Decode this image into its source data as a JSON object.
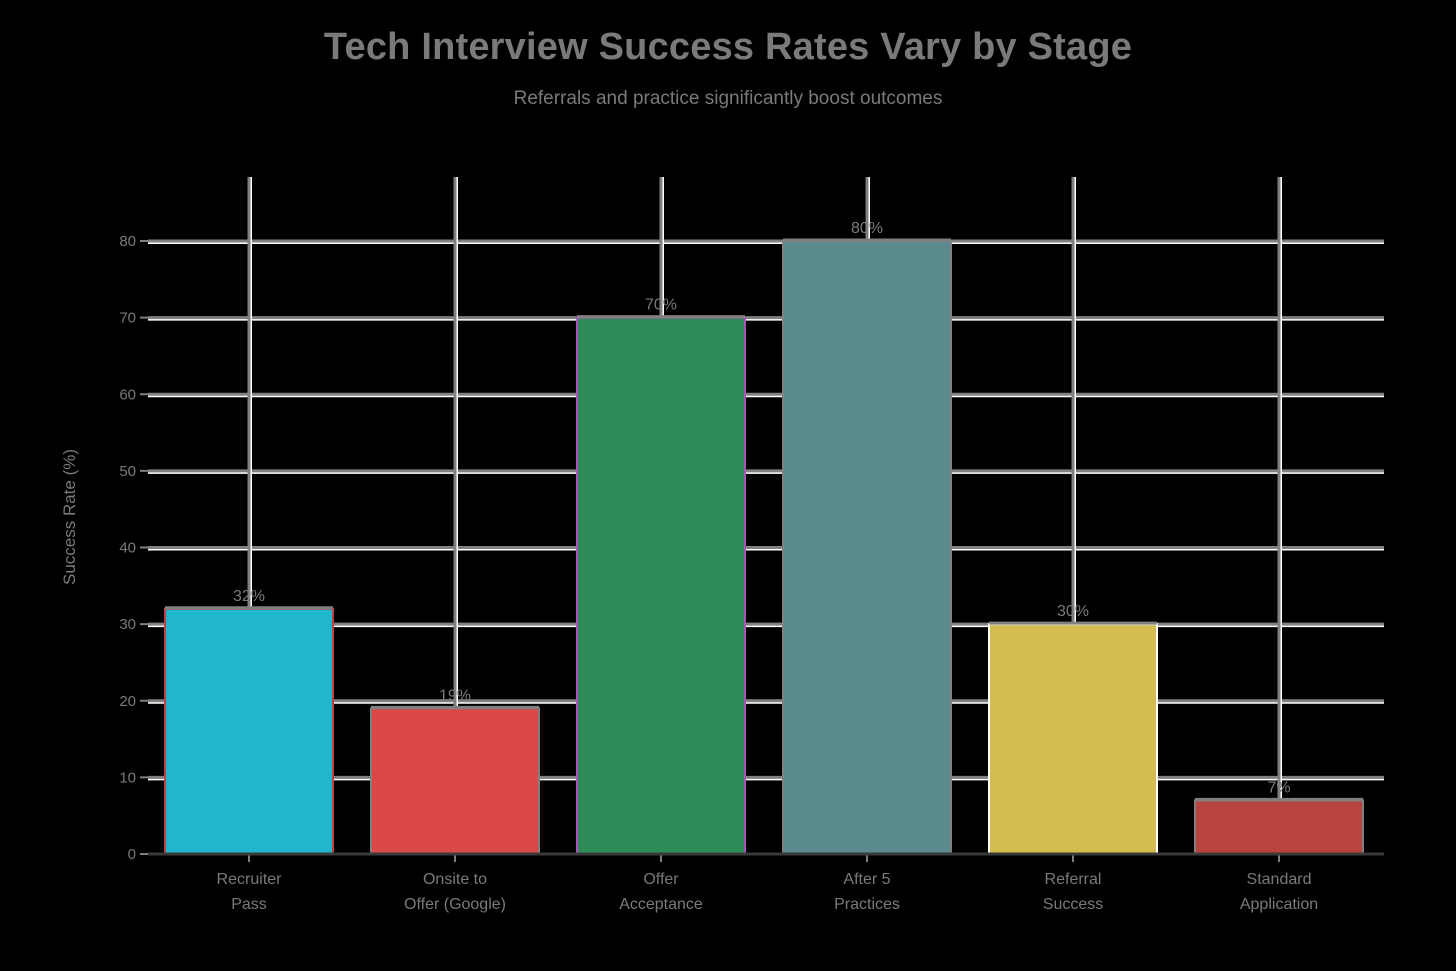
{
  "header": {
    "title": "Tech Interview Success Rates Vary by Stage",
    "subtitle": "Referrals and practice significantly boost outcomes"
  },
  "axes": {
    "ylabel": "Success Rate (%)",
    "yticks": [
      0,
      10,
      20,
      30,
      40,
      50,
      60,
      70,
      80
    ]
  },
  "colors": {
    "background": "#000000",
    "grid": "#808080",
    "text": "#7a7a7a",
    "zero_line": "#3a3a3a"
  },
  "chart_data": {
    "type": "bar",
    "title": "Tech Interview Success Rates Vary by Stage",
    "subtitle": "Referrals and practice significantly boost outcomes",
    "xlabel": "",
    "ylabel": "Success Rate (%)",
    "ylim": [
      0,
      80
    ],
    "grid": true,
    "legend": "none",
    "categories": [
      "Recruiter Pass",
      "Onsite to Offer (Google)",
      "Offer Acceptance",
      "After 5 Practices",
      "Referral Success",
      "Standard Application"
    ],
    "category_lines": [
      [
        "Recruiter",
        "Pass"
      ],
      [
        "Onsite to",
        "Offer (Google)"
      ],
      [
        "Offer",
        "Acceptance"
      ],
      [
        "After 5",
        "Practices"
      ],
      [
        "Referral",
        "Success"
      ],
      [
        "Standard",
        "Application"
      ]
    ],
    "values": [
      32,
      19,
      70,
      80,
      30,
      7
    ],
    "value_labels": [
      "32%",
      "19%",
      "70%",
      "80%",
      "30%",
      "7%"
    ],
    "bar_colors": [
      "#20B7CC",
      "#DB4848",
      "#2E8B57",
      "#5B8A8E",
      "#D4BC50",
      "#B84440"
    ],
    "bar_outline_colors": [
      "#c04040",
      "#808080",
      "#b050c0",
      "#808080",
      "#ffffff",
      "#808080"
    ]
  }
}
